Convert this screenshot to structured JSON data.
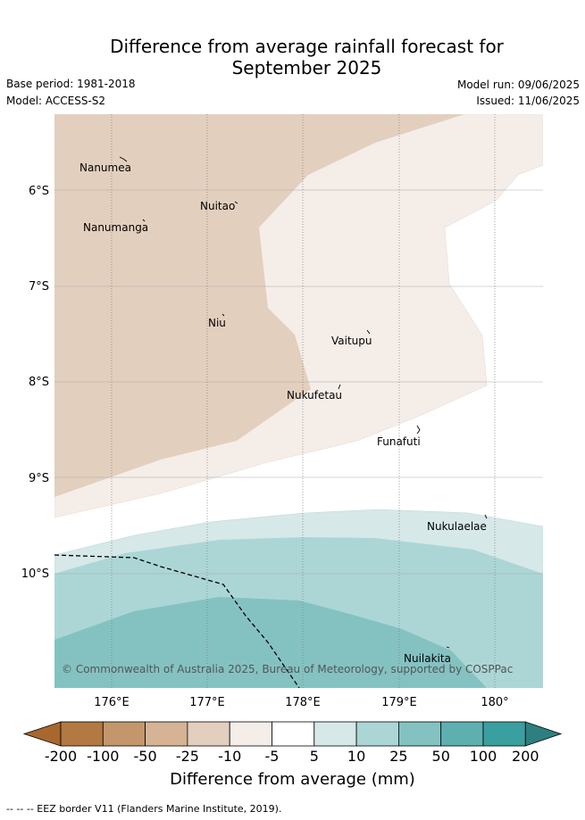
{
  "header": {
    "title_line1": "Difference from average rainfall forecast for",
    "title_line2": "September 2025",
    "base_period": "Base period: 1981-2018",
    "model": "Model: ACCESS-S2",
    "model_run": "Model run: 09/06/2025",
    "issued": "Issued: 11/06/2025"
  },
  "map": {
    "latitude_labels": [
      "6°S",
      "7°S",
      "8°S",
      "9°S",
      "10°S"
    ],
    "longitude_labels": [
      "176°E",
      "177°E",
      "178°E",
      "179°E",
      "180°"
    ],
    "places": [
      "Nanumea",
      "Nuitao",
      "Nanumanga",
      "Niu",
      "Vaitupu",
      "Nukufetau",
      "Funafuti",
      "Nukulaelae",
      "Nuilakita"
    ],
    "copyright": "© Commonwealth of Australia 2025, Bureau of Meteorology, supported by COSPPac"
  },
  "colorbar": {
    "tick_labels": [
      "-200",
      "-100",
      "-50",
      "-25",
      "-10",
      "-5",
      "5",
      "10",
      "25",
      "50",
      "100",
      "200"
    ],
    "colors": [
      "#a8672e",
      "#b27943",
      "#c3976b",
      "#d5b394",
      "#e3cfbe",
      "#f5ede8",
      "#ffffff",
      "#d6e8e8",
      "#acd6d6",
      "#84c2c2",
      "#5eb0b0",
      "#399f9f",
      "#2e7f7f"
    ],
    "label": "Difference from average (mm)"
  },
  "footnote": "-- -- -- EEZ border V11 (Flanders Marine Institute, 2019)."
}
